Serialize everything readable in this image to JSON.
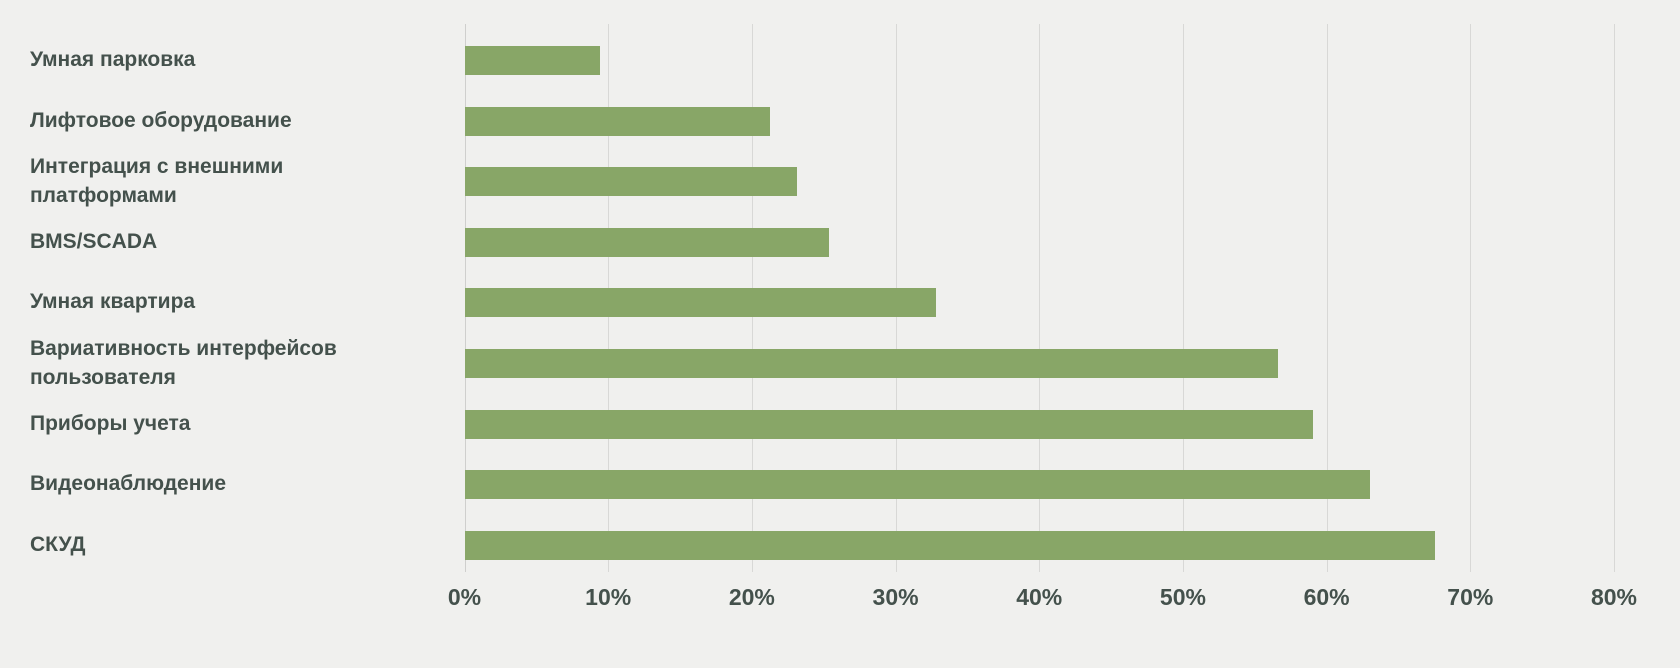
{
  "chart_data": {
    "type": "bar",
    "orientation": "horizontal",
    "title": "",
    "xlabel": "",
    "ylabel": "",
    "categories": [
      "Умная парковка",
      "Лифтовое оборудование",
      "Интеграция с внешними платформами",
      "BMS/SCADA",
      "Умная квартира",
      "Вариативность интерфейсов пользователя",
      "Приборы учета",
      "Видеонаблюдение",
      "СКУД"
    ],
    "values": [
      9.4,
      21.2,
      23.1,
      25.3,
      32.8,
      56.6,
      59,
      63,
      67.5
    ],
    "value_unit": "%",
    "xlim": [
      0,
      80
    ],
    "x_tick_step": 10,
    "x_tick_labels": [
      "0%",
      "10%",
      "20%",
      "30%",
      "40%",
      "50%",
      "60%",
      "70%",
      "80%"
    ],
    "grid": true,
    "legend": false,
    "colors": {
      "bar": "#88a667",
      "background": "#f0f0ee",
      "gridline": "#d8d8d6",
      "text": "#44514c"
    }
  }
}
